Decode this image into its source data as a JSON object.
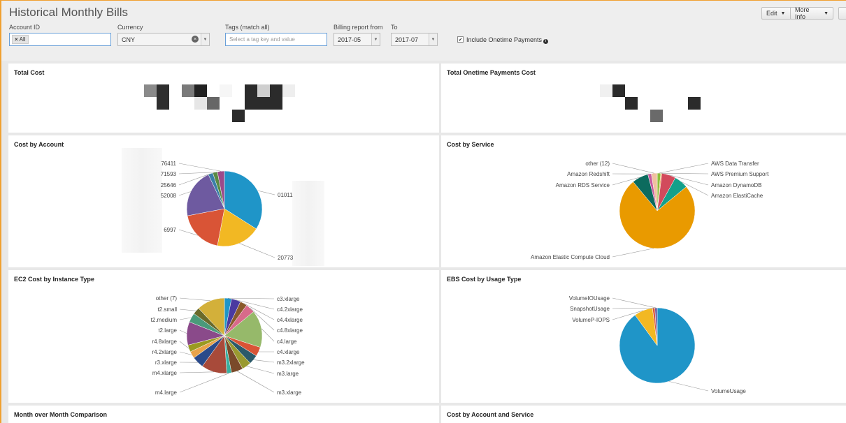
{
  "header": {
    "title": "Historical Monthly Bills",
    "edit_label": "Edit",
    "more_info_label": "More Info"
  },
  "filters": {
    "account_id": {
      "label": "Account ID",
      "chip": "All"
    },
    "currency": {
      "label": "Currency",
      "value": "CNY"
    },
    "tags": {
      "label": "Tags (match all)",
      "placeholder": "Select a tag key and value"
    },
    "billing_from": {
      "label": "Billing report from",
      "value": "2017-05"
    },
    "billing_to": {
      "label": "To",
      "value": "2017-07"
    },
    "onetime": {
      "label": "Include Onetime Payments",
      "checked": true
    }
  },
  "panels": {
    "total_cost": "Total Cost",
    "total_onetime": "Total Onetime Payments Cost",
    "cost_by_account": "Cost by Account",
    "cost_by_service": "Cost by Service",
    "ec2_cost": "EC2 Cost by Instance Type",
    "ebs_cost": "EBS Cost by Usage Type",
    "mom": "Month over Month Comparison",
    "acct_service": "Cost by Account and Service"
  },
  "colors": {
    "accent": "#f0a030",
    "blue": "#1f95c8",
    "orange": "#e99a00",
    "red": "#d95436",
    "purple": "#6e5aa0",
    "yellow": "#f2b823"
  },
  "chart_data": [
    {
      "type": "pie",
      "title": "Cost by Account",
      "labels": [
        "01011",
        "20773",
        "6997",
        "52008",
        "25646",
        "71593",
        "76411"
      ],
      "values": [
        34,
        19,
        19,
        21,
        2,
        2,
        3
      ]
    },
    {
      "type": "pie",
      "title": "Cost by Service",
      "labels": [
        "AWS Data Transfer",
        "AWS Premium Support",
        "Amazon DynamoDB",
        "Amazon ElastiCache",
        "Amazon Elastic Compute Cloud",
        "Amazon RDS Service",
        "Amazon Redshift",
        "other (12)"
      ],
      "values": [
        1.5,
        0.5,
        6,
        6,
        75,
        7,
        1.5,
        2.5
      ]
    },
    {
      "type": "pie",
      "title": "EC2 Cost by Instance Type",
      "labels": [
        "c3.xlarge",
        "c4.2xlarge",
        "c4.4xlarge",
        "c4.8xlarge",
        "c4.large",
        "c4.xlarge",
        "m3.2xlarge",
        "m3.large",
        "m3.xlarge",
        "m4.large",
        "m4.xlarge",
        "r3.xlarge",
        "r4.2xlarge",
        "r4.8xlarge",
        "t2.large",
        "t2.medium",
        "t2.small",
        "other (7)"
      ],
      "values": [
        3,
        4,
        3,
        4,
        16,
        4,
        4,
        4,
        5,
        2,
        11,
        5,
        3,
        3,
        10,
        4,
        3,
        12
      ]
    },
    {
      "type": "pie",
      "title": "EBS Cost by Usage Type",
      "labels": [
        "VolumeUsage",
        "VolumeP-IOPS",
        "SnapshotUsage",
        "VolumeIOUsage"
      ],
      "values": [
        90,
        8,
        1,
        1
      ]
    }
  ]
}
